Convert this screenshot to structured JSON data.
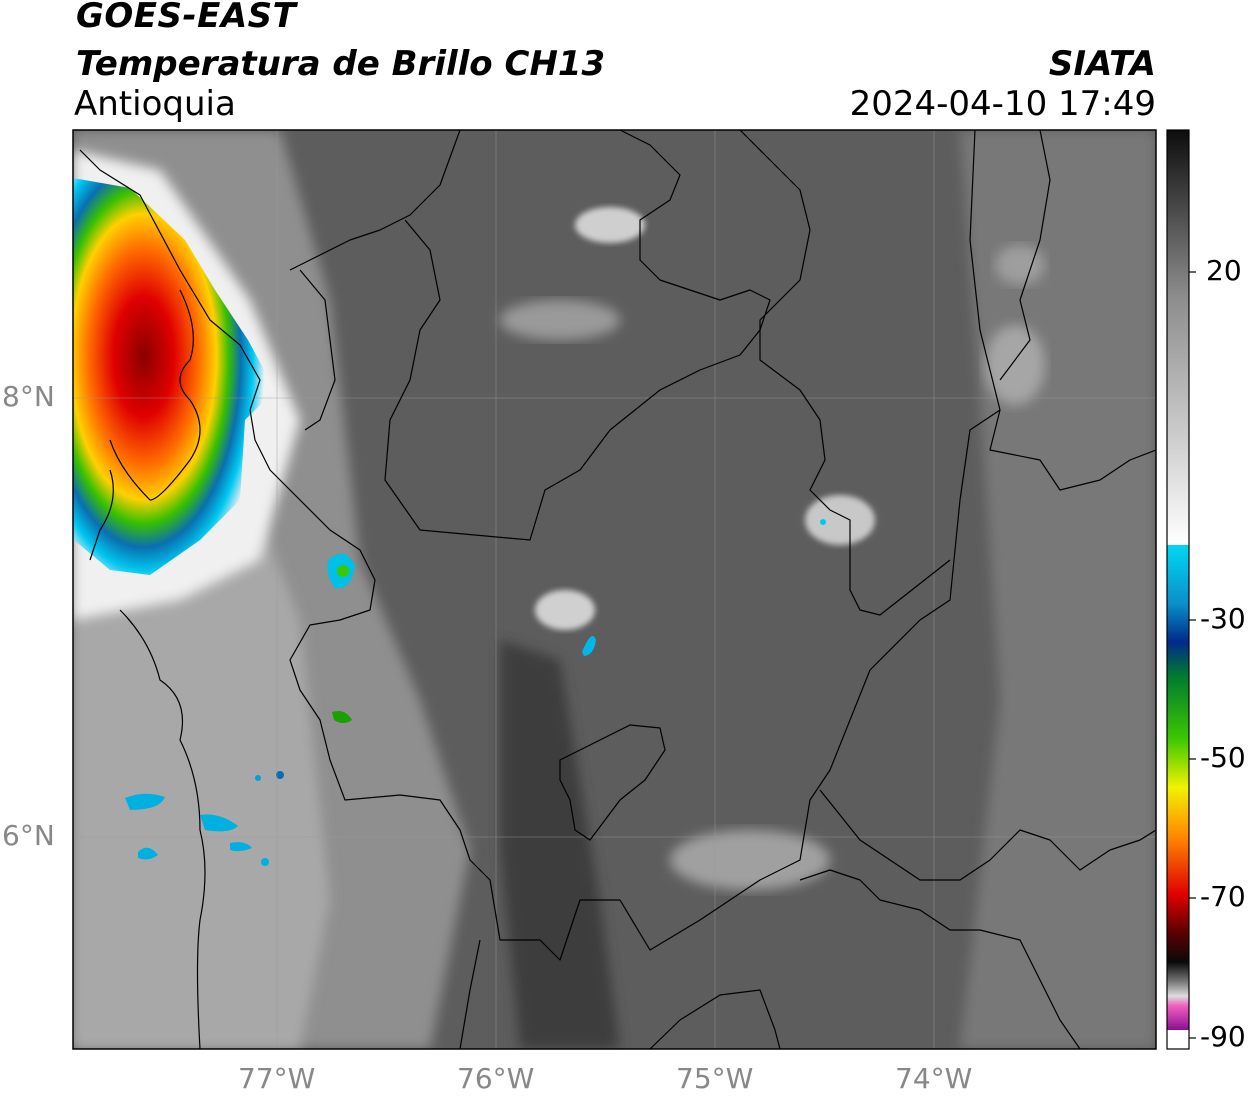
{
  "header": {
    "satellite": "GOES-EAST",
    "product": "Temperatura de Brillo CH13",
    "region": "Antioquia",
    "organization": "SIATA",
    "timestamp": "2024-04-10 17:49"
  },
  "map": {
    "lat_labels": [
      "8°N",
      "6°N"
    ],
    "lon_labels": [
      "77°W",
      "76°W",
      "75°W",
      "74°W"
    ]
  },
  "colorbar": {
    "ticks": [
      "20",
      "-30",
      "-50",
      "-70",
      "-90"
    ]
  }
}
